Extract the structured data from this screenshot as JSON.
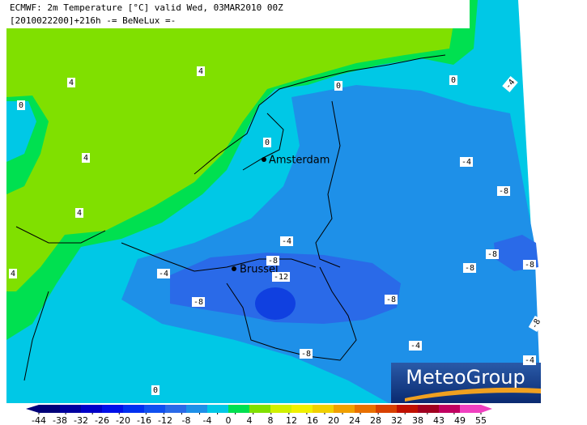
{
  "header": {
    "line1": "ECMWF: 2m Temperature [°C] valid Wed, 03MAR2010 00Z",
    "line2": "[2010022200]+216h -= BeNeLux =-"
  },
  "cities": [
    "Amsterdam",
    "Brussel"
  ],
  "contour_labels": [
    "4",
    "4",
    "0",
    "0",
    "0",
    "-4",
    "4",
    "0",
    "4",
    "-4",
    "-8",
    "4",
    "-4",
    "-8",
    "-12",
    "-4",
    "-8",
    "-8",
    "-8",
    "-8",
    "-8",
    "-4",
    "-8",
    "0",
    "-8",
    "-4"
  ],
  "colorbar": {
    "ticks": [
      -44,
      -38,
      -32,
      -26,
      -20,
      -16,
      -12,
      -8,
      -4,
      0,
      4,
      8,
      12,
      16,
      20,
      24,
      28,
      32,
      38,
      43,
      49,
      55
    ],
    "colors": [
      "#000078",
      "#0000a0",
      "#0000c8",
      "#0010e8",
      "#0030f0",
      "#1050f0",
      "#2a6ae8",
      "#1e90e8",
      "#00c8e6",
      "#00e050",
      "#80e000",
      "#d0f000",
      "#f0f000",
      "#f0d000",
      "#f0a000",
      "#e87000",
      "#d84000",
      "#c01000",
      "#a00020",
      "#c00060",
      "#f040c0"
    ]
  },
  "logo": "MeteoGroup"
}
